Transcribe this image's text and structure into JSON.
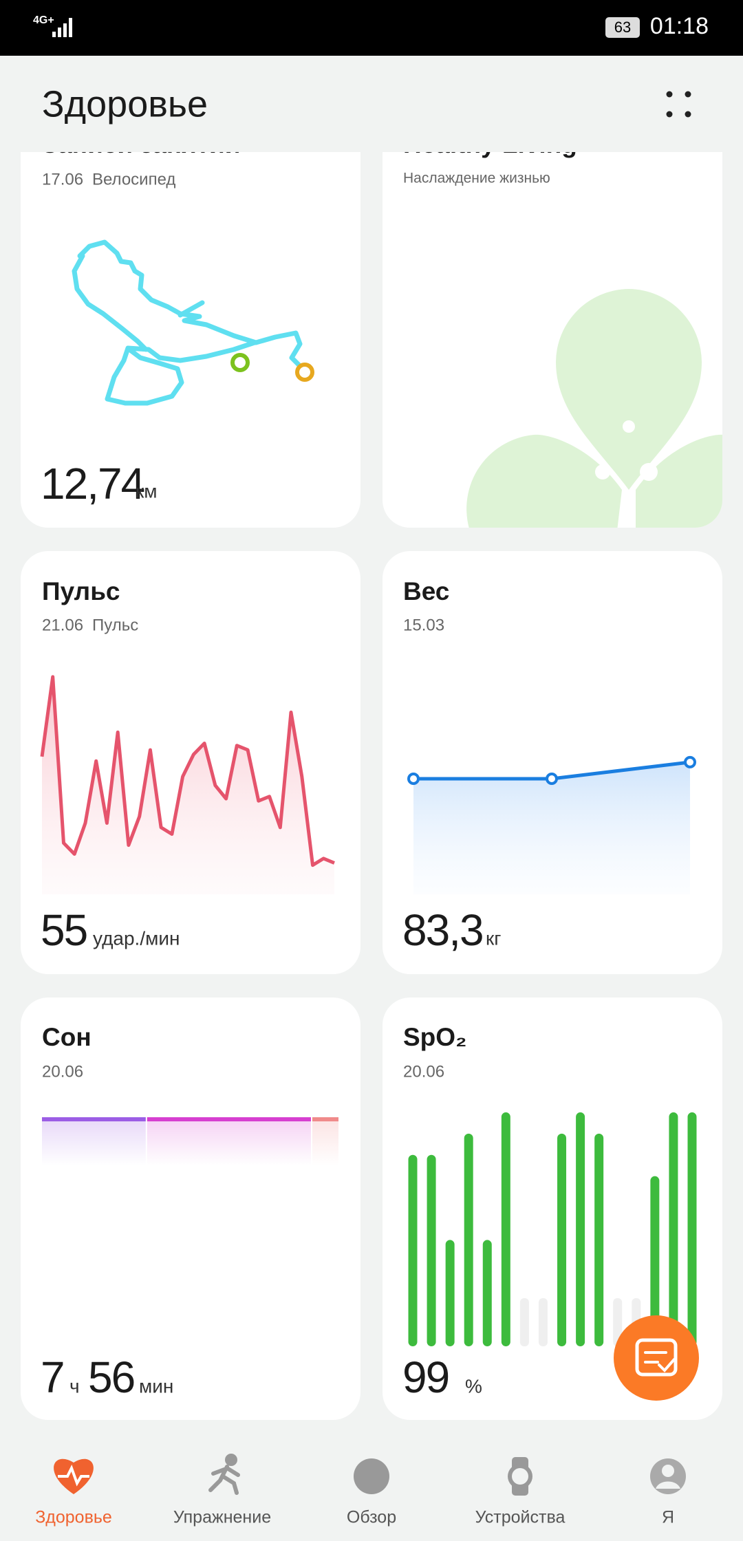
{
  "status_bar": {
    "network": "4G+",
    "battery": "63",
    "time": "01:18"
  },
  "header": {
    "title": "Здоровье"
  },
  "cards": {
    "exercise": {
      "title": "Записи занятий",
      "date": "17.06",
      "activity": "Велосипед",
      "value": "12,74",
      "unit": "км"
    },
    "healthy_living": {
      "title": "Healthy Living",
      "subtitle": "Наслаждение жизнью"
    },
    "pulse": {
      "title": "Пульс",
      "date": "21.06",
      "label": "Пульс",
      "value": "55",
      "unit": "удар./мин",
      "chart": {
        "type": "line",
        "color": "#e5546c",
        "ylim": [
          40,
          140
        ],
        "values": [
          100,
          136,
          61,
          56,
          70,
          98,
          70,
          111,
          60,
          73,
          103,
          68,
          65,
          91,
          101,
          106,
          87,
          81,
          105,
          103,
          80,
          82,
          68,
          120,
          91,
          51,
          54,
          52
        ]
      }
    },
    "weight": {
      "title": "Вес",
      "date": "15.03",
      "value": "83,3",
      "unit": "кг",
      "chart": {
        "type": "line",
        "color": "#1a7ee0",
        "ylim": [
          81,
          85
        ],
        "values": [
          83.0,
          83.0,
          83.3
        ]
      }
    },
    "sleep": {
      "title": "Сон",
      "date": "20.06",
      "hours": "7",
      "hours_unit": "ч",
      "minutes": "56",
      "minutes_unit": "мин",
      "chart": {
        "type": "stacked_bar",
        "series": [
          {
            "color": "#9b5de5",
            "values": [
              168
            ]
          },
          {
            "color": "#d63fd0",
            "values": [
              264
            ]
          },
          {
            "color": "#f08a8a",
            "values": [
              44
            ]
          }
        ]
      }
    },
    "spo2": {
      "title": "SpO₂",
      "date": "20.06",
      "value": "99",
      "unit": "%",
      "chart": {
        "type": "bar",
        "color": "#3dbb3d",
        "ylim": [
          88,
          100
        ],
        "values": [
          97,
          97,
          93,
          98,
          93,
          99,
          null,
          null,
          98,
          99,
          98,
          null,
          null,
          96,
          99,
          99
        ]
      }
    }
  },
  "nav": {
    "items": [
      "Здоровье",
      "Упражнение",
      "Обзор",
      "Устройства",
      "Я"
    ]
  }
}
